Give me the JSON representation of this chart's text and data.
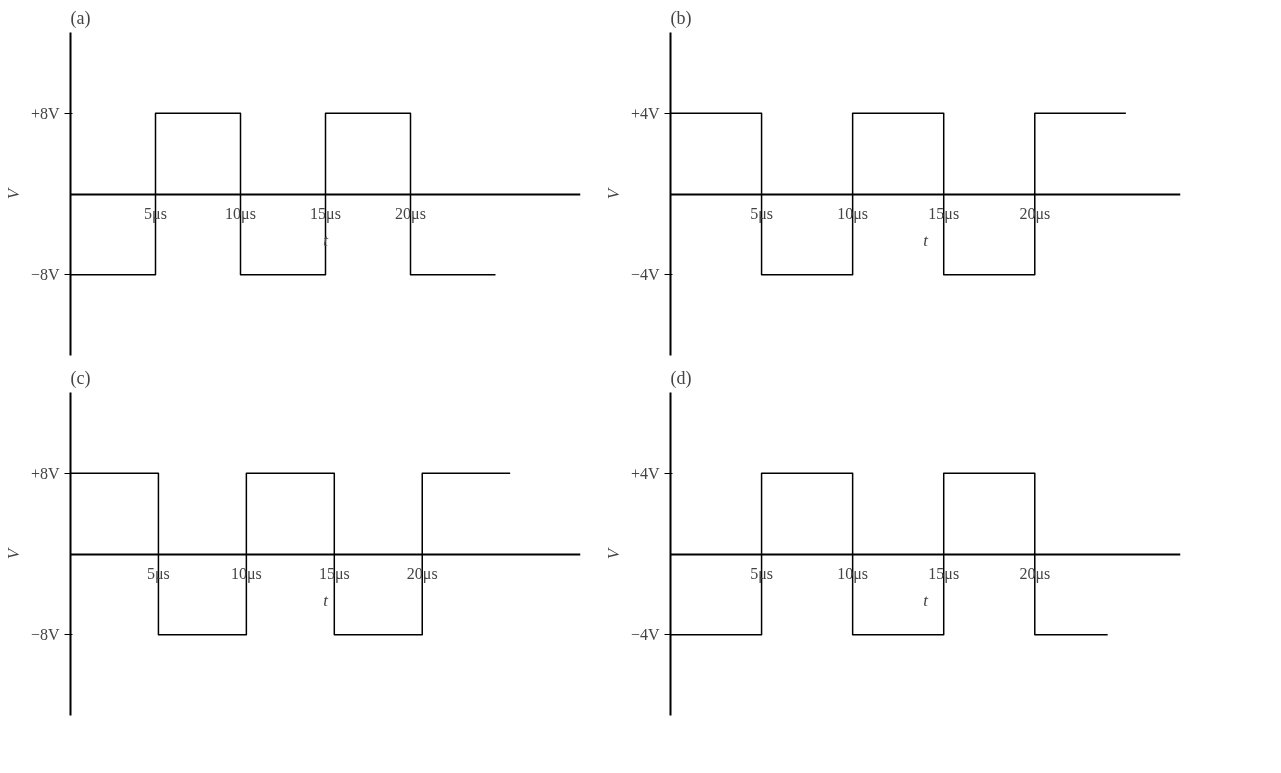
{
  "chart_data": [
    {
      "type": "step",
      "title": "(a)",
      "xlabel": "t",
      "ylabel": "V",
      "x": [
        0,
        5,
        10,
        15,
        20,
        25
      ],
      "values": [
        -8,
        8,
        -8,
        8,
        -8,
        -8
      ],
      "color": "#000000",
      "xlim": [
        0,
        30
      ],
      "ylim": [
        -16,
        16
      ],
      "xticks": [
        {
          "value": 5,
          "label": "5μs"
        },
        {
          "value": 10,
          "label": "10μs"
        },
        {
          "value": 15,
          "label": "15μs"
        },
        {
          "value": 20,
          "label": "20μs"
        }
      ],
      "yticks": [
        {
          "value": -8,
          "label": "−8V"
        },
        {
          "value": 8,
          "label": "+8V"
        }
      ],
      "grid": false
    },
    {
      "type": "step",
      "title": "(b)",
      "xlabel": "t",
      "ylabel": "V",
      "x": [
        0,
        5,
        10,
        15,
        20,
        25
      ],
      "values": [
        4,
        -4,
        4,
        -4,
        4,
        4
      ],
      "color": "#000000",
      "xlim": [
        0,
        28
      ],
      "ylim": [
        -8,
        8
      ],
      "xticks": [
        {
          "value": 5,
          "label": "5μs"
        },
        {
          "value": 10,
          "label": "10μs"
        },
        {
          "value": 15,
          "label": "15μs"
        },
        {
          "value": 20,
          "label": "20μs"
        }
      ],
      "yticks": [
        {
          "value": -4,
          "label": "−4V"
        },
        {
          "value": 4,
          "label": "+4V"
        }
      ],
      "grid": false
    },
    {
      "type": "step",
      "title": "(c)",
      "xlabel": "t",
      "ylabel": "V",
      "x": [
        0,
        5,
        10,
        15,
        20,
        25
      ],
      "values": [
        8,
        -8,
        8,
        -8,
        8,
        8
      ],
      "color": "#000000",
      "xlim": [
        0,
        29
      ],
      "ylim": [
        -16,
        16
      ],
      "xticks": [
        {
          "value": 5,
          "label": "5μs"
        },
        {
          "value": 10,
          "label": "10μs"
        },
        {
          "value": 15,
          "label": "15μs"
        },
        {
          "value": 20,
          "label": "20μs"
        }
      ],
      "yticks": [
        {
          "value": -8,
          "label": "−8V"
        },
        {
          "value": 8,
          "label": "+8V"
        }
      ],
      "grid": false
    },
    {
      "type": "step",
      "title": "(d)",
      "xlabel": "t",
      "ylabel": "V",
      "x": [
        0,
        5,
        10,
        15,
        20,
        24
      ],
      "values": [
        -4,
        4,
        -4,
        4,
        -4,
        -4
      ],
      "color": "#000000",
      "xlim": [
        0,
        28
      ],
      "ylim": [
        -8,
        8
      ],
      "xticks": [
        {
          "value": 5,
          "label": "5μs"
        },
        {
          "value": 10,
          "label": "10μs"
        },
        {
          "value": 15,
          "label": "15μs"
        },
        {
          "value": 20,
          "label": "20μs"
        }
      ],
      "yticks": [
        {
          "value": -4,
          "label": "−4V"
        },
        {
          "value": 4,
          "label": "+4V"
        }
      ],
      "grid": false
    }
  ]
}
